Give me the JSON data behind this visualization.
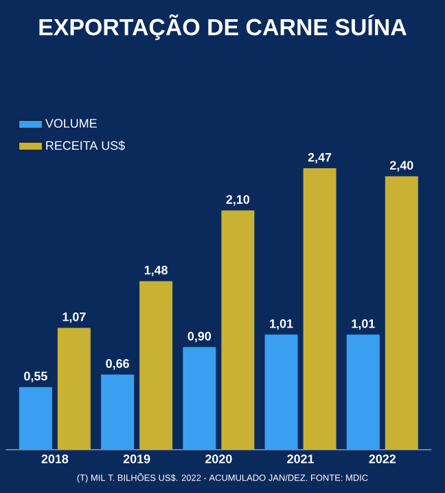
{
  "chart_data": {
    "type": "bar",
    "title": "EXPORTAÇÃO DE CARNE SUÍNA",
    "categories": [
      "2018",
      "2019",
      "2020",
      "2021",
      "2022"
    ],
    "series": [
      {
        "name": "VOLUME",
        "color": "#3a9ff0",
        "values": [
          0.55,
          0.66,
          0.9,
          1.01,
          1.01
        ],
        "value_labels": [
          "0,55",
          "0,66",
          "0,90",
          "1,01",
          "1,01"
        ]
      },
      {
        "name": "RECEITA US$",
        "color": "#c9b233",
        "values": [
          1.07,
          1.48,
          2.1,
          2.47,
          2.4
        ],
        "value_labels": [
          "1,07",
          "1,48",
          "2,10",
          "2,47",
          "2,40"
        ]
      }
    ],
    "legend": "top left",
    "annotations": [
      "(T) MIL T. BILHÕES US$. 2022 - ACUMULADO JAN/DEZ. FONTE: MDIC"
    ]
  }
}
